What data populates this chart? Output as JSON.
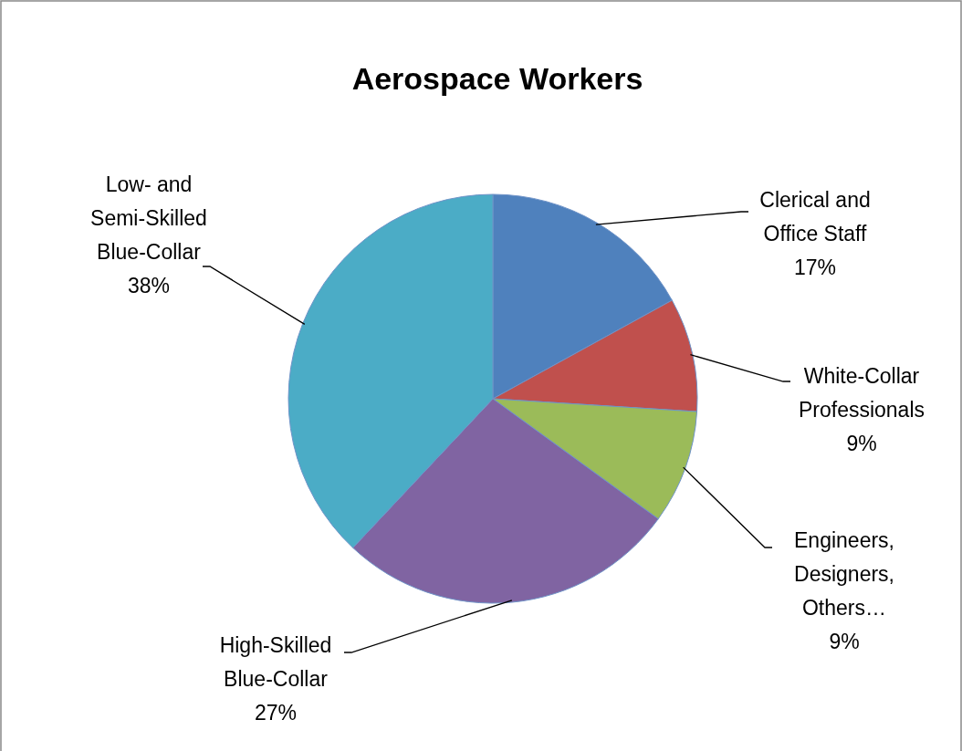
{
  "chart_data": {
    "type": "pie",
    "title": "Aerospace Workers",
    "categories": [
      "Clerical and Office Staff",
      "White-Collar Professionals",
      "Engineers, Designers, Others…",
      "High-Skilled Blue-Collar",
      "Low- and Semi-Skilled Blue-Collar"
    ],
    "values": [
      17,
      9,
      9,
      27,
      38
    ],
    "colors": [
      "#4f81bd",
      "#c0504d",
      "#9bbb59",
      "#8064a2",
      "#4bacc6"
    ],
    "value_labels": [
      "17%",
      "9%",
      "9%",
      "27%",
      "38%"
    ]
  }
}
